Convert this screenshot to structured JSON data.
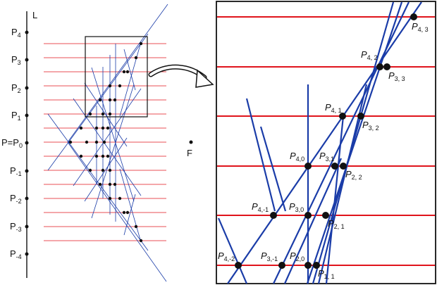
{
  "left_panel": {
    "line_label": "L",
    "focus_label": "F",
    "points": [
      {
        "base": "P",
        "sub": "4"
      },
      {
        "base": "P",
        "sub": "3"
      },
      {
        "base": "P",
        "sub": "2"
      },
      {
        "base": "P",
        "sub": "1"
      },
      {
        "base": "P=P",
        "sub": "0"
      },
      {
        "base": "P",
        "sub": "-1"
      },
      {
        "base": "P",
        "sub": "-2"
      },
      {
        "base": "P",
        "sub": "-3"
      },
      {
        "base": "P",
        "sub": "-4"
      }
    ]
  },
  "zoom_panel": {
    "labels": [
      {
        "base": "P",
        "sub": "4, 3"
      },
      {
        "base": "P",
        "sub": "4, 2"
      },
      {
        "base": "P",
        "sub": "3, 3"
      },
      {
        "base": "P",
        "sub": "4, 1"
      },
      {
        "base": "P",
        "sub": "3, 2"
      },
      {
        "base": "P",
        "sub": "4,0"
      },
      {
        "base": "P",
        "sub": "3,1"
      },
      {
        "base": "P",
        "sub": "2, 2"
      },
      {
        "base": "P",
        "sub": "4,-1"
      },
      {
        "base": "P",
        "sub": "3,0"
      },
      {
        "base": "P",
        "sub": "2, 1"
      },
      {
        "base": "P",
        "sub": "4,-2"
      },
      {
        "base": "P",
        "sub": "3,-1"
      },
      {
        "base": "P",
        "sub": "2,0"
      },
      {
        "base": "P",
        "sub": "1, 1"
      }
    ]
  },
  "colors": {
    "parallel_lines": "#e0141c",
    "rays": "#1a3ca8",
    "points": "#111111",
    "frame": "#000000"
  }
}
